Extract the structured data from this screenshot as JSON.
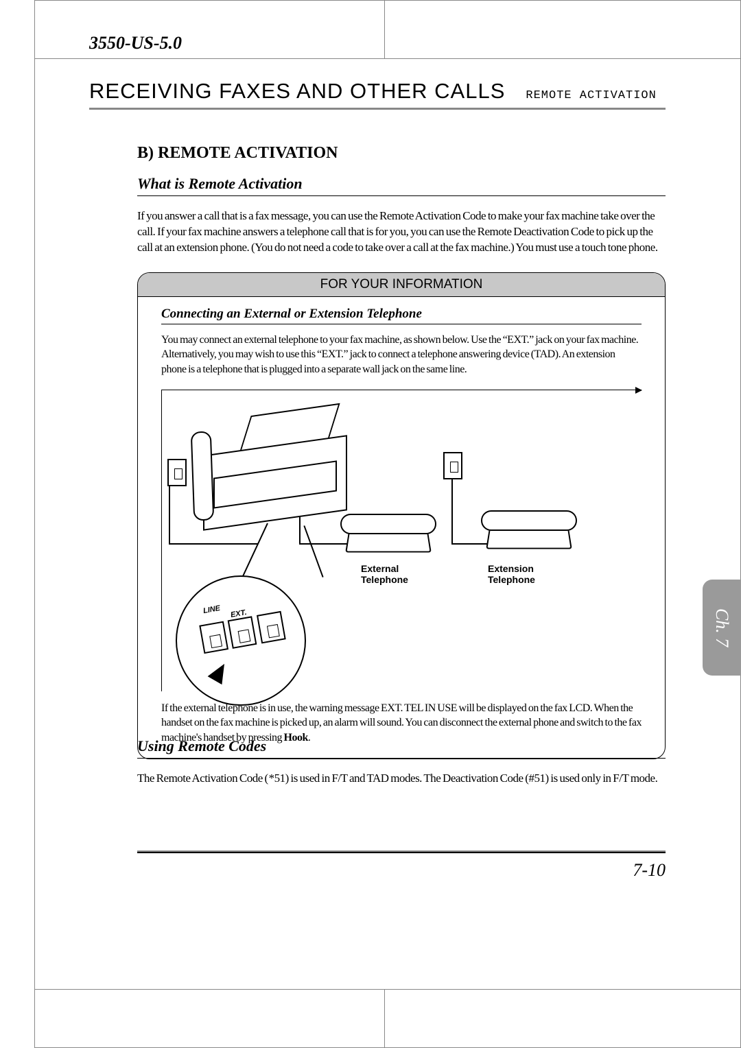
{
  "doc_id": "3550-US-5.0",
  "header": {
    "main": "RECEIVING FAXES AND OTHER CALLS",
    "sub": "REMOTE ACTIVATION"
  },
  "section_b_title": "B) REMOTE ACTIVATION",
  "what_is_title": "What is Remote Activation",
  "what_is_body": "If you answer a call that is a fax message, you can use the Remote Activation Code to make your fax machine take over the call. If your fax machine answers a telephone call that is for you, you can use the Remote Deactivation Code to pick up the call at an extension phone. (You do not need a code to take over a call at the fax machine.) You must use a touch tone phone.",
  "fyi": {
    "title": "FOR YOUR INFORMATION",
    "sub": "Connecting an External or Extension Telephone",
    "body1": "You may connect an external telephone to your fax machine, as shown below. Use the “EXT.” jack on your fax machine. Alternatively, you may wish to use this “EXT.” jack to connect a telephone answering device (TAD). An extension phone is a telephone that is plugged into a separate wall jack on the same line.",
    "label_ext_phone": "External\nTelephone",
    "label_extension_phone": "Extension\nTelephone",
    "port_line_label": "LINE",
    "port_ext_label": "EXT.",
    "body2_pre": "If the external telephone is in use, the warning message EXT. TEL IN USE will be displayed on the fax LCD. When the handset on the fax machine is picked up, an alarm will sound.  You can disconnect the external phone and switch to the fax machine's handset by pressing ",
    "body2_bold": "Hook",
    "body2_post": "."
  },
  "using_codes_title": "Using Remote Codes",
  "using_codes_body": "The Remote Activation Code ( *51) is used in F/T and TAD modes. The Deactivation Code (#51) is used only in F/T mode.",
  "chapter_tab": "Ch. 7",
  "page_number": "7-10"
}
